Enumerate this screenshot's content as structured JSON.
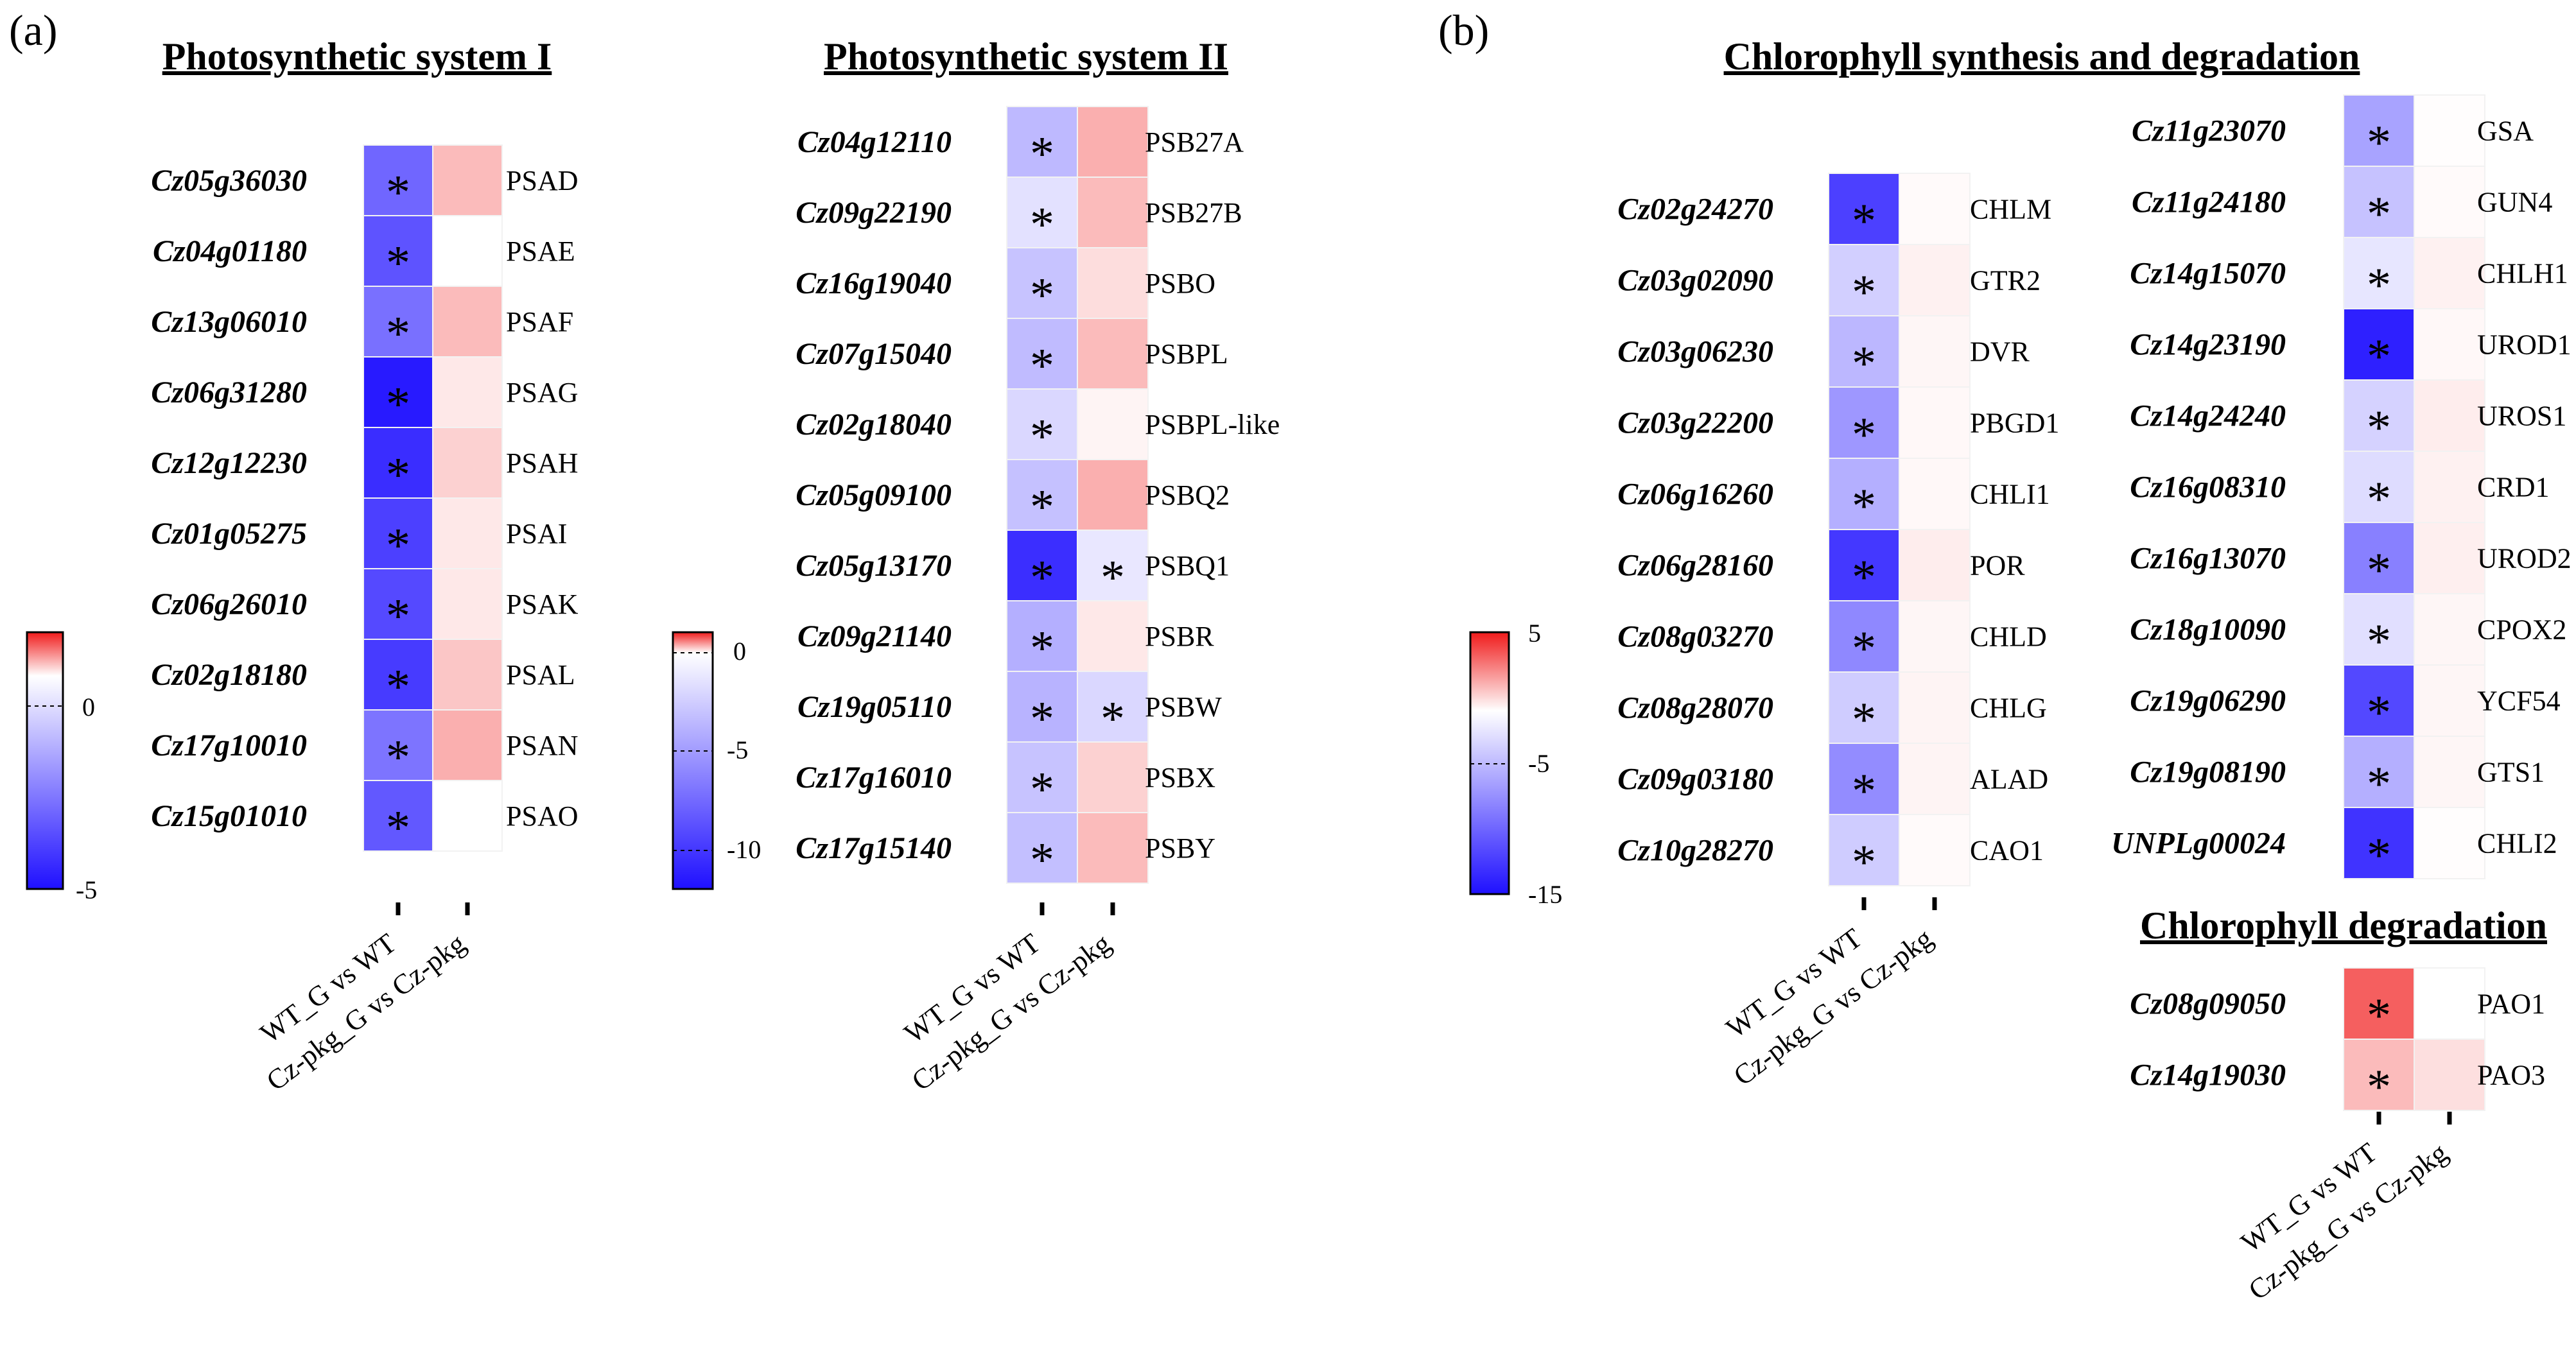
{
  "panel_labels": {
    "a": "(a)",
    "b": "(b)"
  },
  "colors": {
    "low": "#1f10ff",
    "mid": "#ffffff",
    "high": "#f01b1b"
  },
  "x_categories": [
    "WT_G vs WT",
    "Cz-pkg_G vs Cz-pkg"
  ],
  "chart_data": [
    {
      "type": "heatmap",
      "title": "Photosynthetic system I",
      "columns": [
        "WT_G vs WT",
        "Cz-pkg_G vs Cz-pkg"
      ],
      "color_scale": {
        "min": -5,
        "max": 1,
        "ticks": [
          0,
          -5
        ]
      },
      "rows": [
        {
          "gene": "Cz05g36030",
          "protein": "PSAD",
          "values": [
            -3.2,
            0.3
          ],
          "sig": [
            true,
            false
          ]
        },
        {
          "gene": "Cz04g01180",
          "protein": "PSAE",
          "values": [
            -3.6,
            0.0
          ],
          "sig": [
            true,
            false
          ]
        },
        {
          "gene": "Cz13g06010",
          "protein": "PSAF",
          "values": [
            -3.0,
            0.3
          ],
          "sig": [
            true,
            false
          ]
        },
        {
          "gene": "Cz06g31280",
          "protein": "PSAG",
          "values": [
            -4.8,
            0.1
          ],
          "sig": [
            true,
            false
          ]
        },
        {
          "gene": "Cz12g12230",
          "protein": "PSAH",
          "values": [
            -4.4,
            0.2
          ],
          "sig": [
            true,
            false
          ]
        },
        {
          "gene": "Cz01g05275",
          "protein": "PSAI",
          "values": [
            -4.0,
            0.1
          ],
          "sig": [
            true,
            false
          ]
        },
        {
          "gene": "Cz06g26010",
          "protein": "PSAK",
          "values": [
            -3.8,
            0.1
          ],
          "sig": [
            true,
            false
          ]
        },
        {
          "gene": "Cz02g18180",
          "protein": "PSAL",
          "values": [
            -4.1,
            0.25
          ],
          "sig": [
            true,
            false
          ]
        },
        {
          "gene": "Cz17g10010",
          "protein": "PSAN",
          "values": [
            -2.9,
            0.35
          ],
          "sig": [
            true,
            false
          ]
        },
        {
          "gene": "Cz15g01010",
          "protein": "PSAO",
          "values": [
            -3.5,
            0.0
          ],
          "sig": [
            true,
            false
          ]
        }
      ]
    },
    {
      "type": "heatmap",
      "title": "Photosynthetic system II",
      "columns": [
        "WT_G vs WT",
        "Cz-pkg_G vs Cz-pkg"
      ],
      "color_scale": {
        "min": -12,
        "max": 1,
        "ticks": [
          0,
          -5,
          -10
        ]
      },
      "rows": [
        {
          "gene": "Cz04g12110",
          "protein": "PSB27A",
          "values": [
            -3.5,
            0.35
          ],
          "sig": [
            true,
            false
          ]
        },
        {
          "gene": "Cz09g22190",
          "protein": "PSB27B",
          "values": [
            -1.5,
            0.3
          ],
          "sig": [
            true,
            false
          ]
        },
        {
          "gene": "Cz16g19040",
          "protein": "PSBO",
          "values": [
            -3.0,
            0.15
          ],
          "sig": [
            true,
            false
          ]
        },
        {
          "gene": "Cz07g15040",
          "protein": "PSBPL",
          "values": [
            -3.4,
            0.3
          ],
          "sig": [
            true,
            false
          ]
        },
        {
          "gene": "Cz02g18040",
          "protein": "PSBPL-like",
          "values": [
            -2.0,
            0.05
          ],
          "sig": [
            true,
            false
          ]
        },
        {
          "gene": "Cz05g09100",
          "protein": "PSBQ2",
          "values": [
            -3.1,
            0.35
          ],
          "sig": [
            true,
            false
          ]
        },
        {
          "gene": "Cz05g13170",
          "protein": "PSBQ1",
          "values": [
            -10.5,
            -1.2
          ],
          "sig": [
            true,
            true
          ]
        },
        {
          "gene": "Cz09g21140",
          "protein": "PSBR",
          "values": [
            -4.0,
            0.1
          ],
          "sig": [
            true,
            false
          ]
        },
        {
          "gene": "Cz19g05110",
          "protein": "PSBW",
          "values": [
            -3.8,
            -2.0
          ],
          "sig": [
            true,
            true
          ]
        },
        {
          "gene": "Cz17g16010",
          "protein": "PSBX",
          "values": [
            -3.0,
            0.2
          ],
          "sig": [
            true,
            false
          ]
        },
        {
          "gene": "Cz17g15140",
          "protein": "PSBY",
          "values": [
            -3.2,
            0.3
          ],
          "sig": [
            true,
            false
          ]
        }
      ]
    },
    {
      "type": "heatmap",
      "title": "Chlorophyll synthesis and degradation",
      "columns": [
        "WT_G vs WT",
        "Cz-pkg_G vs Cz-pkg"
      ],
      "color_scale": {
        "min": -15,
        "max": 5,
        "ticks": [
          5,
          -5,
          -15
        ]
      },
      "rows": [
        {
          "gene": "Cz02g24270",
          "protein": "CHLM",
          "values": [
            -12.0,
            0.1
          ],
          "sig": [
            true,
            false
          ]
        },
        {
          "gene": "Cz03g02090",
          "protein": "GTR2",
          "values": [
            -3.0,
            0.3
          ],
          "sig": [
            true,
            false
          ]
        },
        {
          "gene": "Cz03g06230",
          "protein": "DVR",
          "values": [
            -4.5,
            0.2
          ],
          "sig": [
            true,
            false
          ]
        },
        {
          "gene": "Cz03g22200",
          "protein": "PBGD1",
          "values": [
            -6.5,
            0.15
          ],
          "sig": [
            true,
            false
          ]
        },
        {
          "gene": "Cz06g16260",
          "protein": "CHLI1",
          "values": [
            -5.0,
            0.15
          ],
          "sig": [
            true,
            false
          ]
        },
        {
          "gene": "Cz06g28160",
          "protein": "POR",
          "values": [
            -12.5,
            0.4
          ],
          "sig": [
            true,
            false
          ]
        },
        {
          "gene": "Cz08g03270",
          "protein": "CHLD",
          "values": [
            -7.5,
            0.2
          ],
          "sig": [
            true,
            false
          ]
        },
        {
          "gene": "Cz08g28070",
          "protein": "CHLG",
          "values": [
            -3.2,
            0.25
          ],
          "sig": [
            true,
            false
          ]
        },
        {
          "gene": "Cz09g03180",
          "protein": "ALAD",
          "values": [
            -7.2,
            0.25
          ],
          "sig": [
            true,
            false
          ]
        },
        {
          "gene": "Cz10g28270",
          "protein": "CAO1",
          "values": [
            -3.2,
            0.1
          ],
          "sig": [
            true,
            false
          ]
        },
        {
          "gene": "Cz11g23070",
          "protein": "GSA",
          "values": [
            -5.8,
            0.05
          ],
          "sig": [
            true,
            false
          ]
        },
        {
          "gene": "Cz11g24180",
          "protein": "GUN4",
          "values": [
            -3.8,
            0.1
          ],
          "sig": [
            true,
            false
          ]
        },
        {
          "gene": "Cz14g15070",
          "protein": "CHLH1",
          "values": [
            -1.6,
            0.3
          ],
          "sig": [
            true,
            false
          ]
        },
        {
          "gene": "Cz14g23190",
          "protein": "UROD1",
          "values": [
            -14.0,
            0.15
          ],
          "sig": [
            true,
            false
          ]
        },
        {
          "gene": "Cz14g24240",
          "protein": "UROS1",
          "values": [
            -2.8,
            0.4
          ],
          "sig": [
            true,
            false
          ]
        },
        {
          "gene": "Cz16g08310",
          "protein": "CRD1",
          "values": [
            -2.2,
            0.3
          ],
          "sig": [
            true,
            false
          ]
        },
        {
          "gene": "Cz16g13070",
          "protein": "UROD2",
          "values": [
            -8.0,
            0.35
          ],
          "sig": [
            true,
            false
          ]
        },
        {
          "gene": "Cz18g10090",
          "protein": "CPOX2",
          "values": [
            -2.0,
            0.2
          ],
          "sig": [
            true,
            false
          ]
        },
        {
          "gene": "Cz19g06290",
          "protein": "YCF54",
          "values": [
            -11.5,
            0.2
          ],
          "sig": [
            true,
            false
          ]
        },
        {
          "gene": "Cz19g08190",
          "protein": "GTS1",
          "values": [
            -5.0,
            0.2
          ],
          "sig": [
            true,
            false
          ]
        },
        {
          "gene": "UNPLg00024",
          "protein": "CHLI2",
          "values": [
            -12.8,
            0.05
          ],
          "sig": [
            true,
            false
          ]
        }
      ]
    },
    {
      "type": "heatmap",
      "title": "Chlorophyll degradation",
      "columns": [
        "WT_G vs WT",
        "Cz-pkg_G vs Cz-pkg"
      ],
      "color_scale": {
        "min": -15,
        "max": 5,
        "ticks": [
          5,
          -5,
          -15
        ]
      },
      "rows": [
        {
          "gene": "Cz08g09050",
          "protein": "PAO1",
          "values": [
            3.5,
            0.0
          ],
          "sig": [
            true,
            false
          ]
        },
        {
          "gene": "Cz14g19030",
          "protein": "PAO3",
          "values": [
            1.5,
            0.7
          ],
          "sig": [
            true,
            false
          ]
        }
      ]
    }
  ]
}
